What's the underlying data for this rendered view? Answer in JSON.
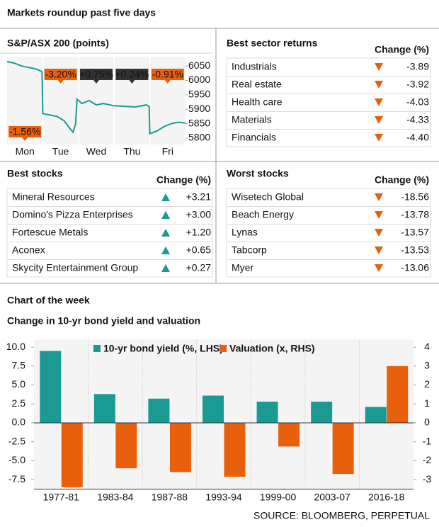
{
  "header": {
    "title": "Markets roundup past five days"
  },
  "index_chart": {
    "type": "line",
    "title": "S&P/ASX 200 (points)",
    "color": "#1a9a92",
    "x": [
      0,
      0.2,
      0.4,
      0.6,
      0.8,
      0.9,
      0.98,
      1.0,
      1.2,
      1.4,
      1.6,
      1.75,
      1.85,
      1.92,
      1.96,
      2.1,
      2.3,
      2.5,
      2.7,
      3.0,
      3.3,
      3.6,
      3.9,
      3.98,
      4.0,
      4.2,
      4.4,
      4.6,
      4.8,
      5.0
    ],
    "values": [
      6065,
      6060,
      6050,
      6045,
      6040,
      6035,
      6030,
      5885,
      5880,
      5875,
      5860,
      5835,
      5820,
      5850,
      5935,
      5920,
      5930,
      5915,
      5920,
      5912,
      5910,
      5908,
      5915,
      5910,
      5815,
      5825,
      5840,
      5850,
      5855,
      5852
    ],
    "xlim": [
      0,
      5
    ],
    "xticks": [
      {
        "value": 0.5,
        "label": "Mon"
      },
      {
        "value": 1.5,
        "label": "Tue"
      },
      {
        "value": 2.5,
        "label": "Wed"
      },
      {
        "value": 3.5,
        "label": "Thu"
      },
      {
        "value": 4.5,
        "label": "Fri"
      }
    ],
    "ylim": [
      5790,
      6070
    ],
    "yticks": [
      5800,
      5850,
      5900,
      5950,
      6000,
      6050
    ],
    "daily_change": {
      "values": [
        -1.56,
        -3.2,
        0.75,
        0.24,
        -0.91
      ],
      "value_labels": [
        "-1.56%",
        "-3.20%",
        "+0.75%",
        "+0.24%",
        "-0.91%"
      ],
      "colors": [
        "#e8600c",
        "#e8600c",
        "#333333",
        "#333333",
        "#e8600c"
      ]
    }
  },
  "sectors": {
    "title": "Best sector returns",
    "column_header": "Change (%)",
    "direction": "down",
    "rows": [
      [
        "Industrials",
        "-3.89"
      ],
      [
        "Real estate",
        "-3.92"
      ],
      [
        "Health care",
        "-4.03"
      ],
      [
        "Materials",
        "-4.33"
      ],
      [
        "Financials",
        "-4.40"
      ]
    ]
  },
  "best_stocks": {
    "title": "Best stocks",
    "column_header": "Change (%)",
    "direction": "up",
    "rows": [
      [
        "Mineral Resources",
        "+3.21"
      ],
      [
        "Domino's Pizza Enterprises",
        "+3.00"
      ],
      [
        "Fortescue Metals",
        "+1.20"
      ],
      [
        "Aconex",
        "+0.65"
      ],
      [
        "Skycity Entertainment Group",
        "+0.27"
      ]
    ]
  },
  "worst_stocks": {
    "title": "Worst stocks",
    "column_header": "Change (%)",
    "direction": "down",
    "rows": [
      [
        "Wisetech Global",
        "-18.56"
      ],
      [
        "Beach Energy",
        "-13.78"
      ],
      [
        "Lynas",
        "-13.57"
      ],
      [
        "Tabcorp",
        "-13.53"
      ],
      [
        "Myer",
        "-13.06"
      ]
    ]
  },
  "chart_data": {
    "type": "bar",
    "section_title": "Chart of the week",
    "title": "Change in 10-yr bond yield and valuation",
    "categories": [
      "1977-81",
      "1983-84",
      "1987-88",
      "1993-94",
      "1999-00",
      "2003-07",
      "2016-18"
    ],
    "series": [
      {
        "name": "10-yr bond yield (%, LHS)",
        "color": "#1a9a92",
        "values": [
          9.5,
          3.8,
          3.2,
          3.6,
          2.8,
          2.8,
          2.1
        ]
      },
      {
        "name": "Valuation (x, RHS)",
        "color": "#e8600c",
        "axis": "y2",
        "values": [
          -3.4,
          -2.4,
          -2.6,
          -2.85,
          -1.25,
          -2.7,
          3.0
        ]
      }
    ],
    "ylim": [
      -8.75,
      11
    ],
    "yticks": [
      {
        "value": 10,
        "label": "10.0"
      },
      7.5,
      {
        "value": 5,
        "label": "5.0"
      },
      2.5,
      {
        "value": 0,
        "label": "0.0"
      },
      -2.5,
      {
        "value": -5,
        "label": "-5.0"
      },
      -7.5
    ],
    "y2lim": [
      -3.5,
      4.4
    ],
    "y2ticks": [
      4,
      3,
      2,
      1,
      0,
      -1,
      -2,
      -3
    ],
    "source": "SOURCE: BLOOMBERG, PERPETUAL"
  }
}
